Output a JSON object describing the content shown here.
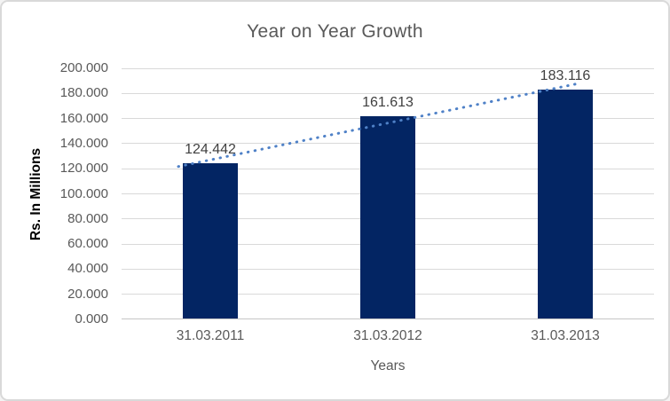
{
  "chart_data": {
    "type": "bar",
    "title": "Year on Year Growth",
    "xlabel": "Years",
    "ylabel": "Rs. In Millions",
    "categories": [
      "31.03.2011",
      "31.03.2012",
      "31.03.2013"
    ],
    "values": [
      124.442,
      161.613,
      183.116
    ],
    "data_labels": [
      "124.442",
      "161.613",
      "183.116"
    ],
    "ylim": [
      0,
      200
    ],
    "ytick_step": 20,
    "yticks": [
      {
        "value": 0,
        "label": "0.000"
      },
      {
        "value": 20,
        "label": "20.000"
      },
      {
        "value": 40,
        "label": "40.000"
      },
      {
        "value": 60,
        "label": "60.000"
      },
      {
        "value": 80,
        "label": "80.000"
      },
      {
        "value": 100,
        "label": "100.000"
      },
      {
        "value": 120,
        "label": "120.000"
      },
      {
        "value": 140,
        "label": "140.000"
      },
      {
        "value": 160,
        "label": "160.000"
      },
      {
        "value": 180,
        "label": "180.000"
      },
      {
        "value": 200,
        "label": "200.000"
      }
    ],
    "grid": true,
    "legend": "none",
    "trendline": {
      "type": "linear",
      "style": "dotted"
    },
    "colors": {
      "bar": "#032563",
      "trendline": "#4f81c7",
      "gridline": "#d9d9d9",
      "axis_line": "#c6c6c6",
      "title_text": "#595959",
      "tick_text": "#595959",
      "data_label_text": "#404040",
      "axis_title_text": "#000000",
      "border": "#d9d9d9",
      "background": "#ffffff"
    }
  }
}
